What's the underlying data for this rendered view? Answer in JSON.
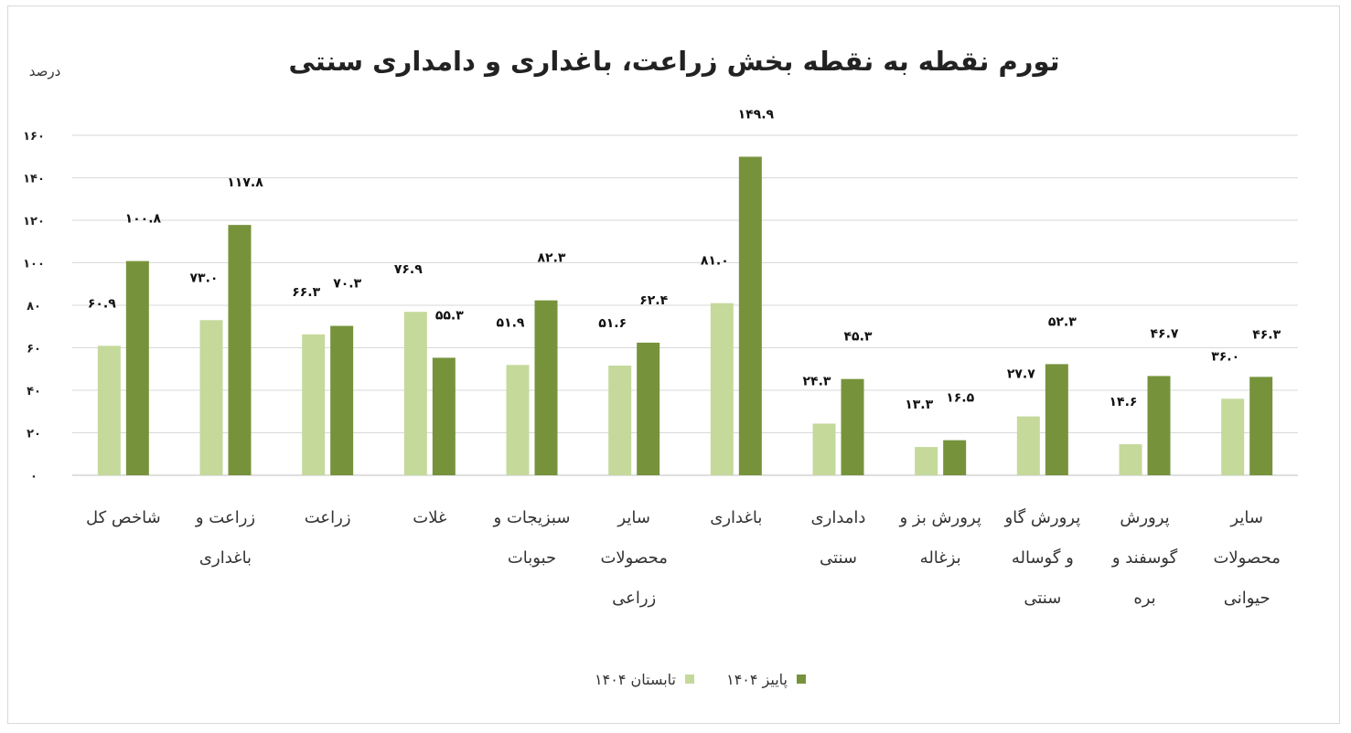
{
  "chart_data": {
    "type": "bar",
    "title": "تورم نقطه به نقطه بخش زراعت، باغداری و دامداری سنتی",
    "unit_label": "درصد",
    "ylim": [
      0,
      160
    ],
    "yticks": [
      0,
      20,
      40,
      60,
      80,
      100,
      120,
      140,
      160
    ],
    "ytick_labels": [
      "۰",
      "۲۰",
      "۴۰",
      "۶۰",
      "۸۰",
      "۱۰۰",
      "۱۲۰",
      "۱۴۰",
      "۱۶۰"
    ],
    "grid": true,
    "legend_position": "bottom",
    "categories": [
      [
        "شاخص کل"
      ],
      [
        "زراعت و",
        "باغداری"
      ],
      [
        "زراعت"
      ],
      [
        "غلات"
      ],
      [
        "سبزیجات و",
        "حبوبات"
      ],
      [
        "سایر",
        "محصولات",
        "زراعی"
      ],
      [
        "باغداری"
      ],
      [
        "دامداری",
        "سنتی"
      ],
      [
        "پرورش بز و",
        "بزغاله"
      ],
      [
        "پرورش گاو",
        "و گوساله",
        "سنتی"
      ],
      [
        "پرورش",
        "گوسفند و",
        "بره"
      ],
      [
        "سایر",
        "محصولات",
        "حیوانی"
      ]
    ],
    "series": [
      {
        "name": "تابستان ۱۴۰۴",
        "color": "#c5d99b",
        "values": [
          60.9,
          73.0,
          66.3,
          76.9,
          51.9,
          51.6,
          81.0,
          24.3,
          13.3,
          27.7,
          14.6,
          36.0
        ],
        "labels": [
          "۶۰.۹",
          "۷۳.۰",
          "۶۶.۳",
          "۷۶.۹",
          "۵۱.۹",
          "۵۱.۶",
          "۸۱.۰",
          "۲۴.۳",
          "۱۳.۳",
          "۲۷.۷",
          "۱۴.۶",
          "۳۶.۰"
        ]
      },
      {
        "name": "پاییز ۱۴۰۴",
        "color": "#76933c",
        "values": [
          100.8,
          117.8,
          70.3,
          55.3,
          82.3,
          62.4,
          149.9,
          45.3,
          16.5,
          52.3,
          46.7,
          46.3
        ],
        "labels": [
          "۱۰۰.۸",
          "۱۱۷.۸",
          "۷۰.۳",
          "۵۵.۳",
          "۸۲.۳",
          "۶۲.۴",
          "۱۴۹.۹",
          "۴۵.۳",
          "۱۶.۵",
          "۵۲.۳",
          "۴۶.۷",
          "۴۶.۳"
        ]
      }
    ]
  }
}
